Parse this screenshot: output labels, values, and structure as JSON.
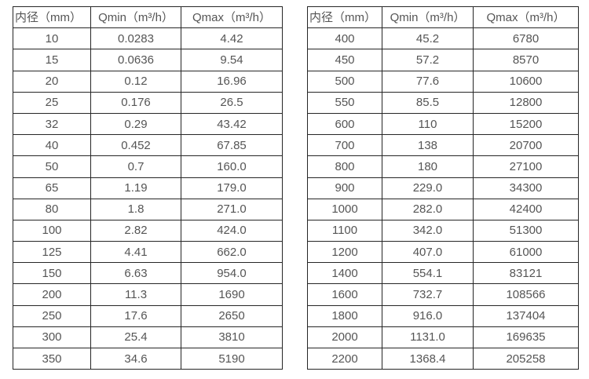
{
  "styles": {
    "background": "#ffffff",
    "text_color": "#555555",
    "border_color": "#262626"
  },
  "chart_data": [
    {
      "type": "table",
      "columns": [
        "内径（mm）",
        "Qmin（m³/h）",
        "Qmax（m³/h）"
      ],
      "rows": [
        [
          "10",
          "0.0283",
          "4.42"
        ],
        [
          "15",
          "0.0636",
          "9.54"
        ],
        [
          "20",
          "0.12",
          "16.96"
        ],
        [
          "25",
          "0.176",
          "26.5"
        ],
        [
          "32",
          "0.29",
          "43.42"
        ],
        [
          "40",
          "0.452",
          "67.85"
        ],
        [
          "50",
          "0.7",
          "160.0"
        ],
        [
          "65",
          "1.19",
          "179.0"
        ],
        [
          "80",
          "1.8",
          "271.0"
        ],
        [
          "100",
          "2.82",
          "424.0"
        ],
        [
          "125",
          "4.41",
          "662.0"
        ],
        [
          "150",
          "6.63",
          "954.0"
        ],
        [
          "200",
          "11.3",
          "1690"
        ],
        [
          "250",
          "17.6",
          "2650"
        ],
        [
          "300",
          "25.4",
          "3810"
        ],
        [
          "350",
          "34.6",
          "5190"
        ]
      ]
    },
    {
      "type": "table",
      "columns": [
        "内径（mm）",
        "Qmin（m³/h）",
        "Qmax（m³/h）"
      ],
      "rows": [
        [
          "400",
          "45.2",
          "6780"
        ],
        [
          "450",
          "57.2",
          "8570"
        ],
        [
          "500",
          "77.6",
          "10600"
        ],
        [
          "550",
          "85.5",
          "12800"
        ],
        [
          "600",
          "110",
          "15200"
        ],
        [
          "700",
          "138",
          "20700"
        ],
        [
          "800",
          "180",
          "27100"
        ],
        [
          "900",
          "229.0",
          "34300"
        ],
        [
          "1000",
          "282.0",
          "42400"
        ],
        [
          "1100",
          "342.0",
          "51300"
        ],
        [
          "1200",
          "407.0",
          "61000"
        ],
        [
          "1400",
          "554.1",
          "83121"
        ],
        [
          "1600",
          "732.7",
          "108566"
        ],
        [
          "1800",
          "916.0",
          "137404"
        ],
        [
          "2000",
          "1131.0",
          "169635"
        ],
        [
          "2200",
          "1368.4",
          "205258"
        ]
      ]
    }
  ]
}
